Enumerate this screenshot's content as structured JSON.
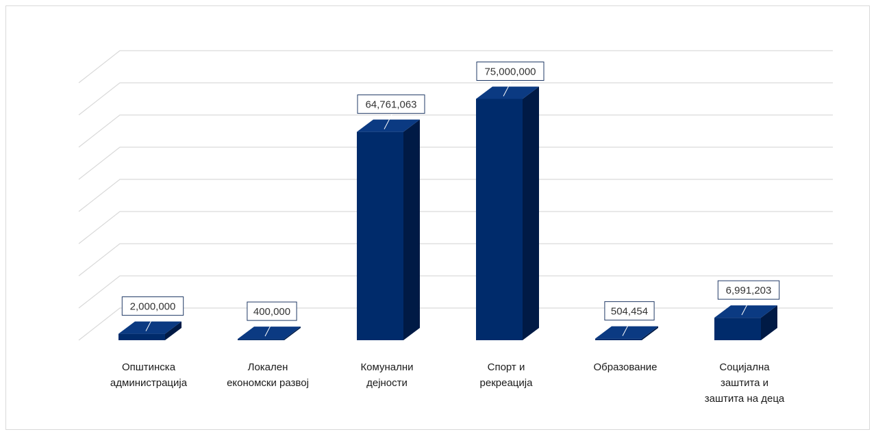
{
  "colors": {
    "front": "#002b6b",
    "top": "#0b3a82",
    "side": "#001a45",
    "grid": "#d9d9d9",
    "label_border": "#1f3864"
  },
  "chart_data": {
    "type": "bar",
    "style": "3d-column",
    "title": "",
    "xlabel": "",
    "ylabel": "",
    "ylim": [
      0,
      80000000
    ],
    "grid": true,
    "legend": "none",
    "categories": [
      [
        "Општинска",
        "администрација"
      ],
      [
        "Локален",
        "економски развој"
      ],
      [
        "Комунални",
        "дејности"
      ],
      [
        "Спорт и",
        "рекреација"
      ],
      [
        "Образование"
      ],
      [
        "Социјална",
        "заштита и",
        "заштита на деца"
      ]
    ],
    "series": [
      {
        "values": [
          2000000,
          400000,
          64761063,
          75000000,
          504454,
          6991203
        ],
        "labels": [
          "2,000,000",
          "400,000",
          "64,761,063",
          "75,000,000",
          "504,454",
          "6,991,203"
        ]
      }
    ]
  }
}
